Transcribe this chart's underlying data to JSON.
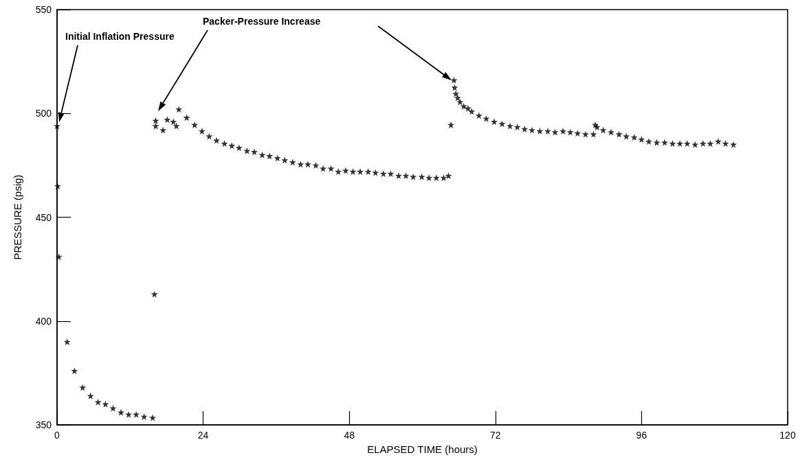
{
  "chart_data": {
    "type": "scatter",
    "xlabel": "ELAPSED TIME (hours)",
    "ylabel": "PRESSURE (psig)",
    "xlim": [
      0,
      120
    ],
    "xticks": [
      0,
      24,
      48,
      72,
      96,
      120
    ],
    "ylim": [
      350,
      550
    ],
    "yticks": [
      350,
      400,
      450,
      500,
      550
    ],
    "grid": false,
    "marker": "star",
    "annotations": [
      "Initial Inflation Pressure",
      "Packer-Pressure Increase"
    ],
    "series": [
      {
        "color": "#000000",
        "x": [
          0,
          0.1,
          0.3,
          1.66,
          2.86,
          4.2,
          5.5,
          6.74,
          7.95,
          9.2,
          10.5,
          11.75,
          13.0,
          14.3,
          15.7,
          16.0,
          16.2,
          16.2,
          17.4,
          18.1,
          19.1,
          19.6,
          20.0,
          21.3,
          22.6,
          23.8,
          25.0,
          26.2,
          27.5,
          28.7,
          29.9,
          31.2,
          32.4,
          33.7,
          34.9,
          36.2,
          37.4,
          38.7,
          40.0,
          41.2,
          42.5,
          43.7,
          45.0,
          46.2,
          47.4,
          48.6,
          49.8,
          51.1,
          52.3,
          53.6,
          54.8,
          56.1,
          57.3,
          58.5,
          59.9,
          61.1,
          62.3,
          63.5,
          64.3,
          64.7,
          65.2,
          65.3,
          65.5,
          65.8,
          66.2,
          66.8,
          67.5,
          68.1,
          69.3,
          70.5,
          71.8,
          73.1,
          74.4,
          75.6,
          76.8,
          78.0,
          79.3,
          80.6,
          81.8,
          83.1,
          84.3,
          85.5,
          86.8,
          88.1,
          88.4,
          88.7,
          89.7,
          91.0,
          92.3,
          93.5,
          94.8,
          96.0,
          97.2,
          98.5,
          99.8,
          101.1,
          102.3,
          103.5,
          104.8,
          106.1,
          107.3,
          108.6,
          109.8,
          111.1
        ],
        "values": [
          494,
          465,
          431,
          390,
          376,
          368,
          364,
          361,
          360,
          358,
          356,
          355,
          355,
          354,
          353.5,
          413,
          496.5,
          494,
          492,
          497,
          496,
          494,
          502,
          498,
          494.5,
          491.5,
          489,
          487,
          485.5,
          484.5,
          483.5,
          482,
          481.5,
          480,
          479.5,
          478.5,
          477.5,
          476.5,
          475.5,
          475.5,
          475,
          473.5,
          473.5,
          472,
          472.5,
          472,
          472,
          472,
          471.5,
          471,
          471,
          470,
          470,
          469.5,
          469.5,
          469,
          469,
          469,
          470,
          494.5,
          516,
          512.5,
          509.5,
          507.5,
          505.5,
          503.5,
          502.5,
          501,
          499,
          497.5,
          496,
          495,
          494,
          493.5,
          492.5,
          492,
          491.5,
          491.5,
          491,
          491.5,
          491,
          490.5,
          490,
          490,
          494.5,
          493.5,
          492,
          491,
          490,
          489,
          488.5,
          487.5,
          486.5,
          486,
          486,
          485.5,
          485.5,
          485.5,
          485,
          485.5,
          485.5,
          486.5,
          485.5,
          485
        ]
      }
    ]
  }
}
